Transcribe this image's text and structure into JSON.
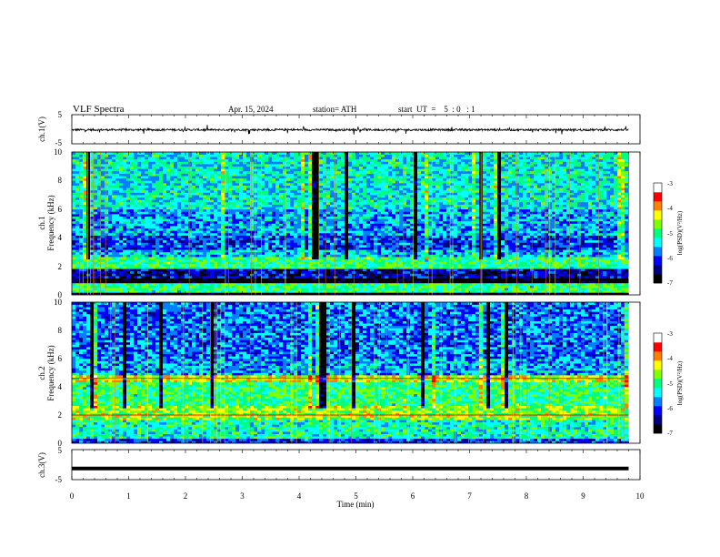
{
  "header": {
    "title": "VLF  Spectra",
    "date": "Apr. 15, 2024",
    "station": "station= ATH",
    "start_ut": "start  UT  =    5  : 0   : 1"
  },
  "chart_data": [
    {
      "type": "line",
      "panel": "ch1-waveform",
      "ylabel": "ch.1(V)",
      "ylim": [
        -5,
        5
      ],
      "yticks": [
        "5",
        "-5"
      ],
      "xlim": [
        0,
        10
      ],
      "x_end": 9.8,
      "baseline": -0.2,
      "trace_color": "#000000",
      "note_values": "noisy waveform around -0.2 V with spikes up to about ±1.5 V"
    },
    {
      "type": "heatmap",
      "panel": "ch1-spectrogram",
      "ylabel_top": "ch.1",
      "ylabel": "Frequency  (kHz)",
      "ylim": [
        0,
        10
      ],
      "yticks": [
        "10",
        "8",
        "6",
        "4",
        "2",
        "0"
      ],
      "xlim": [
        0,
        10
      ],
      "x_end": 9.8,
      "colorbar": {
        "label": "log(PSD)(V²/Hz)",
        "range": [
          -7,
          -3
        ],
        "ticks": [
          "-3",
          "-4",
          "-5",
          "-6",
          "-7"
        ],
        "colors": [
          "#000000",
          "#00007f",
          "#0000ff",
          "#007fff",
          "#00ffff",
          "#00ff7f",
          "#7fff00",
          "#ffff00",
          "#ff7f00",
          "#ff0000",
          "#ffffff"
        ]
      },
      "bands": [
        {
          "f_lo": 0.0,
          "f_hi": 0.2,
          "level": -7
        },
        {
          "f_lo": 0.2,
          "f_hi": 0.9,
          "level": -5
        },
        {
          "f_lo": 0.9,
          "f_hi": 1.2,
          "level": -7
        },
        {
          "f_lo": 1.2,
          "f_hi": 1.8,
          "level": -6.3
        },
        {
          "f_lo": 1.8,
          "f_hi": 2.6,
          "level": -5
        },
        {
          "f_lo": 2.6,
          "f_hi": 3.2,
          "level": -5.5
        },
        {
          "f_lo": 3.2,
          "f_hi": 4.2,
          "level": -6
        },
        {
          "f_lo": 4.2,
          "f_hi": 6.0,
          "level": -5.6
        },
        {
          "f_lo": 6.0,
          "f_hi": 10.0,
          "level": -5.3
        }
      ]
    },
    {
      "type": "heatmap",
      "panel": "ch2-spectrogram",
      "ylabel_top": "ch.2",
      "ylabel": "Frequency  (kHz)",
      "ylim": [
        0,
        10
      ],
      "yticks": [
        "10",
        "8",
        "6",
        "4",
        "2",
        "0"
      ],
      "xlim": [
        0,
        10
      ],
      "x_end": 9.8,
      "colorbar": {
        "label": "log(PSD)(V²/Hz)",
        "range": [
          -7,
          -3
        ],
        "ticks": [
          "-3",
          "-4",
          "-5",
          "-6",
          "-7"
        ],
        "colors": [
          "#000000",
          "#00007f",
          "#0000ff",
          "#007fff",
          "#00ffff",
          "#00ff7f",
          "#7fff00",
          "#ffff00",
          "#ff7f00",
          "#ff0000",
          "#ffffff"
        ]
      },
      "bands": [
        {
          "f_lo": 0.0,
          "f_hi": 0.3,
          "level": -6
        },
        {
          "f_lo": 0.3,
          "f_hi": 1.6,
          "level": -5.2
        },
        {
          "f_lo": 1.6,
          "f_hi": 2.6,
          "level": -4.6
        },
        {
          "f_lo": 2.6,
          "f_hi": 4.4,
          "level": -5.0
        },
        {
          "f_lo": 4.4,
          "f_hi": 4.8,
          "level": -4.4
        },
        {
          "f_lo": 4.8,
          "f_hi": 6.0,
          "level": -5.6
        },
        {
          "f_lo": 6.0,
          "f_hi": 10.0,
          "level": -5.8
        }
      ],
      "lines_khz": [
        2.0,
        4.6
      ]
    },
    {
      "type": "line",
      "panel": "ch3-waveform",
      "ylabel": "ch.3(V)",
      "ylim": [
        -5,
        5
      ],
      "yticks": [
        "5",
        "-5"
      ],
      "xlim": [
        0,
        10
      ],
      "x_end": 9.8,
      "value": -1.3,
      "trace_color": "#000000",
      "xlabel": "Time  (min)",
      "xticks": [
        "0",
        "1",
        "2",
        "3",
        "4",
        "5",
        "6",
        "7",
        "8",
        "9",
        "10"
      ]
    }
  ]
}
